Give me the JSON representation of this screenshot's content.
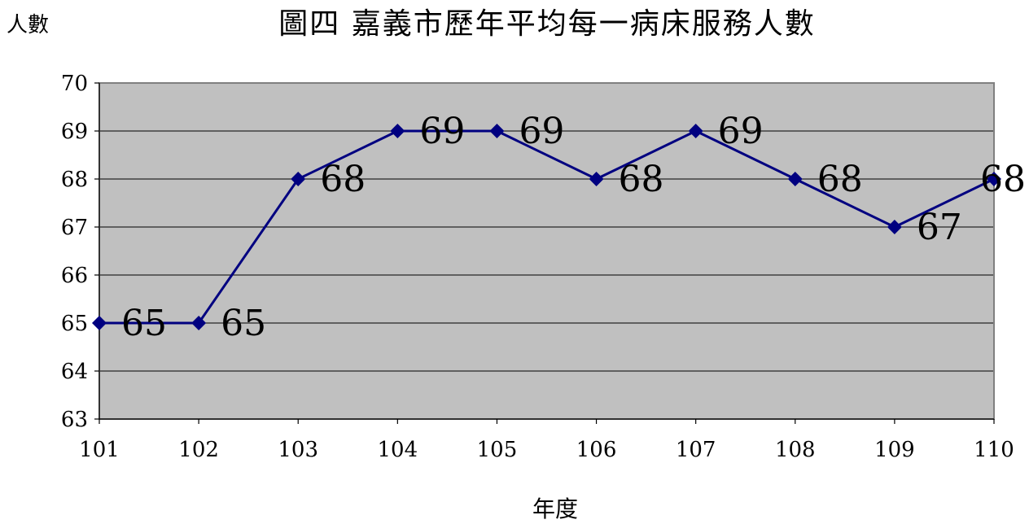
{
  "chart_data": {
    "type": "line",
    "title": "圖四 嘉義市歷年平均每一病床服務人數",
    "ylabel": "人數",
    "xlabel": "年度",
    "x": [
      "101",
      "102",
      "103",
      "104",
      "105",
      "106",
      "107",
      "108",
      "109",
      "110"
    ],
    "series": [
      {
        "values": [
          65,
          65,
          68,
          69,
          69,
          68,
          69,
          68,
          67,
          68
        ]
      }
    ],
    "ylim": [
      63,
      70
    ],
    "yticks": [
      63,
      64,
      65,
      66,
      67,
      68,
      69,
      70
    ],
    "grid": true,
    "legend": "none",
    "colors": {
      "line": "#000080",
      "marker": "#000080",
      "plot_bg": "#c0c0c0",
      "grid": "#000000",
      "frame": "#808080"
    }
  }
}
